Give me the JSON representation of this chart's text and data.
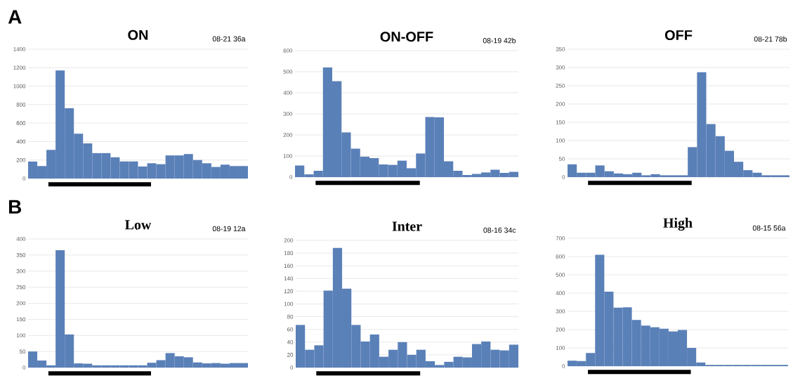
{
  "chart_data": [
    {
      "type": "bar",
      "title": "ON",
      "subtitle": "08-21 36a",
      "annotations": [
        "A"
      ],
      "categories": [
        null,
        null,
        null,
        null,
        null,
        null,
        null,
        null,
        null,
        null,
        null,
        null,
        null,
        null,
        null,
        null,
        null,
        null,
        null,
        null,
        null,
        null,
        null,
        null
      ],
      "values": [
        184,
        135,
        310,
        1170,
        760,
        485,
        380,
        275,
        275,
        230,
        185,
        185,
        130,
        165,
        155,
        250,
        250,
        265,
        200,
        165,
        125,
        150,
        135,
        135
      ],
      "color": "#5a80b8",
      "ylim": [
        0,
        1400
      ],
      "yticks": [
        0,
        200,
        400,
        600,
        800,
        1000,
        1200,
        1400
      ],
      "grid": "y"
    },
    {
      "type": "bar",
      "title": "ON-OFF",
      "subtitle": "08-19 42b",
      "categories": [
        null,
        null,
        null,
        null,
        null,
        null,
        null,
        null,
        null,
        null,
        null,
        null,
        null,
        null,
        null,
        null,
        null,
        null,
        null,
        null,
        null,
        null,
        null,
        null
      ],
      "values": [
        55,
        13,
        30,
        520,
        455,
        212,
        135,
        97,
        90,
        60,
        58,
        78,
        42,
        112,
        285,
        283,
        75,
        30,
        10,
        15,
        22,
        35,
        20,
        25
      ],
      "color": "#5a80b8",
      "ylim": [
        0,
        600
      ],
      "yticks": [
        0,
        100,
        200,
        300,
        400,
        500,
        600
      ],
      "grid": "y"
    },
    {
      "type": "bar",
      "title": "OFF",
      "subtitle": "08-21 78b",
      "categories": [
        null,
        null,
        null,
        null,
        null,
        null,
        null,
        null,
        null,
        null,
        null,
        null,
        null,
        null,
        null,
        null,
        null,
        null,
        null,
        null,
        null,
        null,
        null,
        null
      ],
      "values": [
        35,
        12,
        12,
        32,
        16,
        10,
        8,
        12,
        5,
        8,
        5,
        5,
        5,
        82,
        287,
        145,
        112,
        72,
        42,
        19,
        12,
        5,
        5,
        5
      ],
      "color": "#5a80b8",
      "ylim": [
        0,
        350
      ],
      "yticks": [
        0,
        50,
        100,
        150,
        200,
        250,
        300,
        350
      ],
      "grid": "y"
    },
    {
      "type": "bar",
      "title": "Low",
      "subtitle": "08-19 12a",
      "annotations": [
        "B"
      ],
      "categories": [
        null,
        null,
        null,
        null,
        null,
        null,
        null,
        null,
        null,
        null,
        null,
        null,
        null,
        null,
        null,
        null,
        null,
        null,
        null,
        null,
        null,
        null,
        null,
        null
      ],
      "values": [
        50,
        22,
        7,
        365,
        103,
        13,
        12,
        7,
        7,
        7,
        7,
        7,
        7,
        15,
        23,
        45,
        35,
        32,
        16,
        13,
        14,
        12,
        14,
        14
      ],
      "color": "#5a80b8",
      "ylim": [
        0,
        400
      ],
      "yticks": [
        0,
        50,
        100,
        150,
        200,
        250,
        300,
        350,
        400
      ],
      "grid": "y"
    },
    {
      "type": "bar",
      "title": "Inter",
      "subtitle": "08-16 34c",
      "categories": [
        null,
        null,
        null,
        null,
        null,
        null,
        null,
        null,
        null,
        null,
        null,
        null,
        null,
        null,
        null,
        null,
        null,
        null,
        null,
        null,
        null,
        null,
        null,
        null
      ],
      "values": [
        67,
        28,
        35,
        121,
        188,
        124,
        67,
        41,
        52,
        17,
        28,
        40,
        20,
        28,
        10,
        4,
        9,
        17,
        16,
        37,
        41,
        28,
        27,
        36
      ],
      "color": "#5a80b8",
      "ylim": [
        0,
        200
      ],
      "yticks": [
        0,
        20,
        40,
        60,
        80,
        100,
        120,
        140,
        160,
        180,
        200
      ],
      "grid": "y"
    },
    {
      "type": "bar",
      "title": "High",
      "subtitle": "08-15 56a",
      "categories": [
        null,
        null,
        null,
        null,
        null,
        null,
        null,
        null,
        null,
        null,
        null,
        null,
        null,
        null,
        null,
        null,
        null,
        null,
        null,
        null,
        null,
        null,
        null,
        null
      ],
      "values": [
        30,
        28,
        72,
        610,
        408,
        320,
        322,
        253,
        222,
        213,
        205,
        190,
        198,
        100,
        20,
        7,
        7,
        7,
        7,
        7,
        7,
        7,
        7,
        7
      ],
      "color": "#5a80b8",
      "ylim": [
        0,
        700
      ],
      "yticks": [
        0,
        100,
        200,
        300,
        400,
        500,
        600,
        700
      ],
      "grid": "y"
    }
  ]
}
